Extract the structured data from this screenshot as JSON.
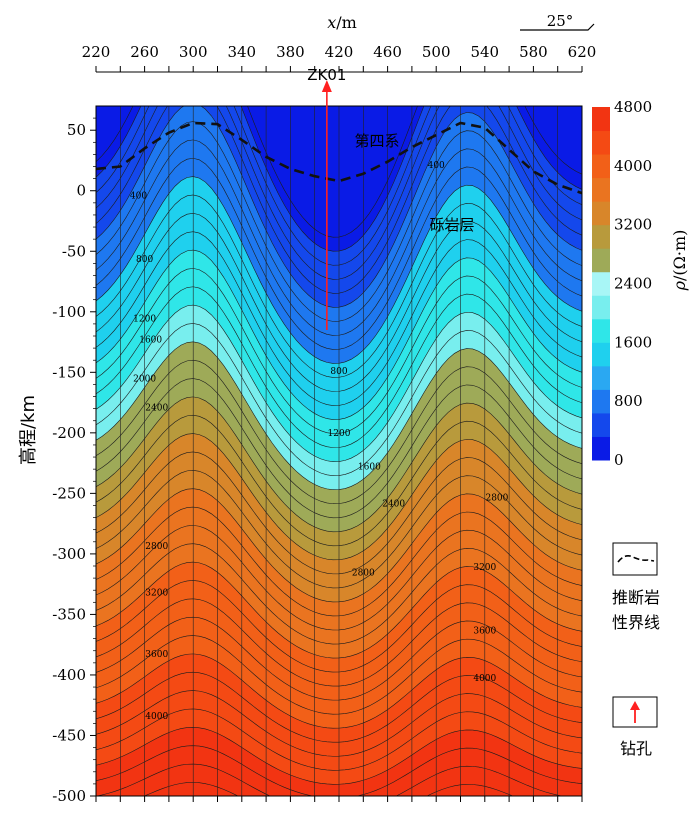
{
  "chart_data": {
    "type": "heatmap",
    "title": "",
    "xlabel": "x/m",
    "ylabel": "高程/km",
    "xlim": [
      220,
      620
    ],
    "ylim": [
      -500,
      70
    ],
    "x_ticks": [
      "220",
      "260",
      "300",
      "340",
      "380",
      "420",
      "460",
      "500",
      "540",
      "580",
      "620"
    ],
    "y_ticks": [
      "50",
      "0",
      "-50",
      "-100",
      "-150",
      "-200",
      "-250",
      "-300",
      "-350",
      "-400",
      "-450",
      "-500"
    ],
    "colorbar": {
      "label": "ρ/(Ω·m)",
      "ticks": [
        "4800",
        "4000",
        "3200",
        "2400",
        "1600",
        "800",
        "0"
      ],
      "range": [
        0,
        4800
      ],
      "colors": [
        "#0a1be6",
        "#1448ec",
        "#1e78f0",
        "#2aa8f2",
        "#1fd0ee",
        "#2fe6e8",
        "#78eeee",
        "#a8f6f6",
        "#9eaa58",
        "#b89a3c",
        "#d8862a",
        "#ea7420",
        "#f26018",
        "#f44a14",
        "#f23412"
      ]
    },
    "annotations": {
      "borehole": "ZK01",
      "layer_upper": "第四系",
      "layer_lower": "砾岩层",
      "direction": "25°"
    },
    "contour_labels": [
      "400",
      "400",
      "800",
      "800",
      "1200",
      "1200",
      "1600",
      "1600",
      "2000",
      "2400",
      "2400",
      "2800",
      "2800",
      "2800",
      "3200",
      "3200",
      "3600",
      "3600",
      "4000",
      "4000"
    ],
    "legend": {
      "line_label_1": "推断岩",
      "line_label_2": "性界线",
      "borehole_label": "钻孔"
    },
    "boundary_line": [
      [
        220,
        18
      ],
      [
        240,
        20
      ],
      [
        260,
        35
      ],
      [
        280,
        48
      ],
      [
        300,
        56
      ],
      [
        320,
        55
      ],
      [
        340,
        42
      ],
      [
        360,
        28
      ],
      [
        380,
        18
      ],
      [
        400,
        12
      ],
      [
        420,
        8
      ],
      [
        440,
        14
      ],
      [
        460,
        24
      ],
      [
        480,
        36
      ],
      [
        500,
        46
      ],
      [
        520,
        56
      ],
      [
        540,
        52
      ],
      [
        560,
        34
      ],
      [
        580,
        16
      ],
      [
        600,
        5
      ],
      [
        620,
        -2
      ]
    ],
    "borehole_x": 410
  }
}
